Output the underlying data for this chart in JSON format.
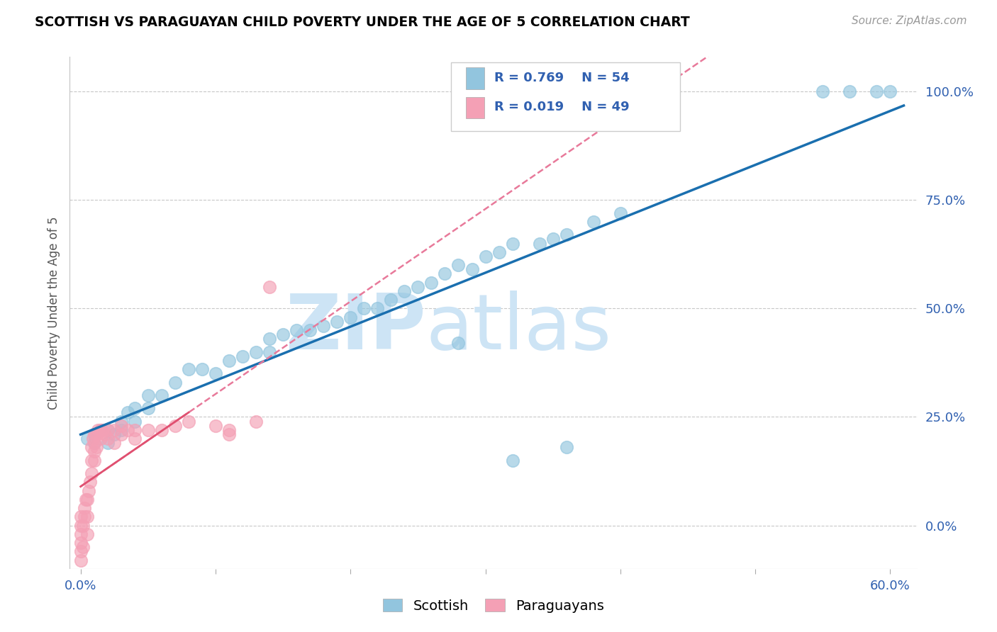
{
  "title": "SCOTTISH VS PARAGUAYAN CHILD POVERTY UNDER THE AGE OF 5 CORRELATION CHART",
  "source": "Source: ZipAtlas.com",
  "ylabel": "Child Poverty Under the Age of 5",
  "x_ticks": [
    0.0,
    0.1,
    0.2,
    0.3,
    0.4,
    0.5,
    0.6
  ],
  "x_tick_labels": [
    "0.0%",
    "",
    "",
    "",
    "",
    "",
    "60.0%"
  ],
  "y_ticks_right": [
    0.0,
    0.25,
    0.5,
    0.75,
    1.0
  ],
  "y_tick_labels_right": [
    "0.0%",
    "25.0%",
    "50.0%",
    "75.0%",
    "100.0%"
  ],
  "legend_labels": [
    "Scottish",
    "Paraguayans"
  ],
  "legend_r_s": "R = 0.769",
  "legend_n_s": "N = 54",
  "legend_r_p": "R = 0.019",
  "legend_n_p": "N = 49",
  "scottish_color": "#92c5de",
  "paraguayan_color": "#f4a0b5",
  "regression_scottish_color": "#1a6faf",
  "regression_paraguayan_color": "#e8799a",
  "watermark_zip": "ZIP",
  "watermark_atlas": "atlas",
  "watermark_color": "#cde4f5",
  "xlim": [
    -0.008,
    0.62
  ],
  "ylim": [
    -0.1,
    1.08
  ],
  "scottish_x": [
    0.005,
    0.01,
    0.01,
    0.015,
    0.02,
    0.02,
    0.025,
    0.03,
    0.03,
    0.035,
    0.04,
    0.04,
    0.05,
    0.05,
    0.06,
    0.07,
    0.08,
    0.09,
    0.1,
    0.11,
    0.12,
    0.13,
    0.14,
    0.14,
    0.15,
    0.16,
    0.17,
    0.18,
    0.19,
    0.2,
    0.21,
    0.22,
    0.23,
    0.24,
    0.25,
    0.26,
    0.27,
    0.28,
    0.29,
    0.3,
    0.31,
    0.32,
    0.34,
    0.35,
    0.36,
    0.38,
    0.4,
    0.28,
    0.32,
    0.36,
    0.55,
    0.57,
    0.59,
    0.6
  ],
  "scottish_y": [
    0.2,
    0.19,
    0.21,
    0.22,
    0.19,
    0.22,
    0.21,
    0.22,
    0.24,
    0.26,
    0.24,
    0.27,
    0.27,
    0.3,
    0.3,
    0.33,
    0.36,
    0.36,
    0.35,
    0.38,
    0.39,
    0.4,
    0.4,
    0.43,
    0.44,
    0.45,
    0.45,
    0.46,
    0.47,
    0.48,
    0.5,
    0.5,
    0.52,
    0.54,
    0.55,
    0.56,
    0.58,
    0.6,
    0.59,
    0.62,
    0.63,
    0.65,
    0.65,
    0.66,
    0.67,
    0.7,
    0.72,
    0.42,
    0.15,
    0.18,
    1.0,
    1.0,
    1.0,
    1.0
  ],
  "paraguayan_x": [
    0.0,
    0.0,
    0.0,
    0.0,
    0.0,
    0.0,
    0.002,
    0.002,
    0.003,
    0.003,
    0.004,
    0.005,
    0.005,
    0.005,
    0.006,
    0.007,
    0.008,
    0.008,
    0.008,
    0.009,
    0.01,
    0.01,
    0.01,
    0.01,
    0.012,
    0.012,
    0.013,
    0.015,
    0.015,
    0.016,
    0.018,
    0.02,
    0.02,
    0.025,
    0.03,
    0.03,
    0.035,
    0.04,
    0.05,
    0.06,
    0.07,
    0.08,
    0.1,
    0.11,
    0.13,
    0.14,
    0.025,
    0.04,
    0.11
  ],
  "paraguayan_y": [
    -0.08,
    -0.06,
    -0.04,
    -0.02,
    0.0,
    0.02,
    -0.05,
    0.0,
    0.02,
    0.04,
    0.06,
    -0.02,
    0.02,
    0.06,
    0.08,
    0.1,
    0.12,
    0.15,
    0.18,
    0.2,
    0.15,
    0.17,
    0.19,
    0.21,
    0.18,
    0.21,
    0.22,
    0.2,
    0.22,
    0.22,
    0.21,
    0.2,
    0.22,
    0.22,
    0.21,
    0.23,
    0.22,
    0.22,
    0.22,
    0.22,
    0.23,
    0.24,
    0.23,
    0.22,
    0.24,
    0.55,
    0.19,
    0.2,
    0.21
  ]
}
